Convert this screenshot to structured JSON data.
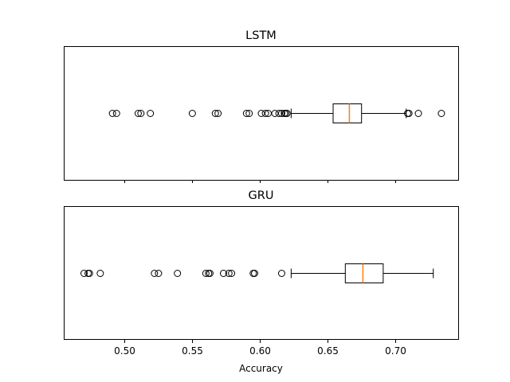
{
  "chart_data": {
    "type": "boxplot",
    "orientation": "horizontal",
    "shared_x": true,
    "xlabel": "Accuracy",
    "xlim": [
      0.455,
      0.747
    ],
    "xticks": [
      0.5,
      0.55,
      0.6,
      0.65,
      0.7
    ],
    "xtick_labels": [
      "0.50",
      "0.55",
      "0.60",
      "0.65",
      "0.70"
    ],
    "median_color": "#ff7f0e",
    "panels": [
      {
        "title": "LSTM",
        "whisker_low": 0.623,
        "q1": 0.654,
        "median": 0.666,
        "q3": 0.675,
        "whisker_high": 0.708,
        "outliers": [
          0.491,
          0.494,
          0.51,
          0.512,
          0.519,
          0.55,
          0.567,
          0.569,
          0.59,
          0.592,
          0.601,
          0.604,
          0.606,
          0.611,
          0.614,
          0.616,
          0.618,
          0.619,
          0.62,
          0.709,
          0.71,
          0.717,
          0.734
        ]
      },
      {
        "title": "GRU",
        "whisker_low": 0.623,
        "q1": 0.663,
        "median": 0.676,
        "q3": 0.691,
        "whisker_high": 0.728,
        "outliers": [
          0.47,
          0.473,
          0.474,
          0.482,
          0.522,
          0.525,
          0.539,
          0.56,
          0.562,
          0.563,
          0.573,
          0.577,
          0.579,
          0.595,
          0.596,
          0.616
        ]
      }
    ]
  }
}
